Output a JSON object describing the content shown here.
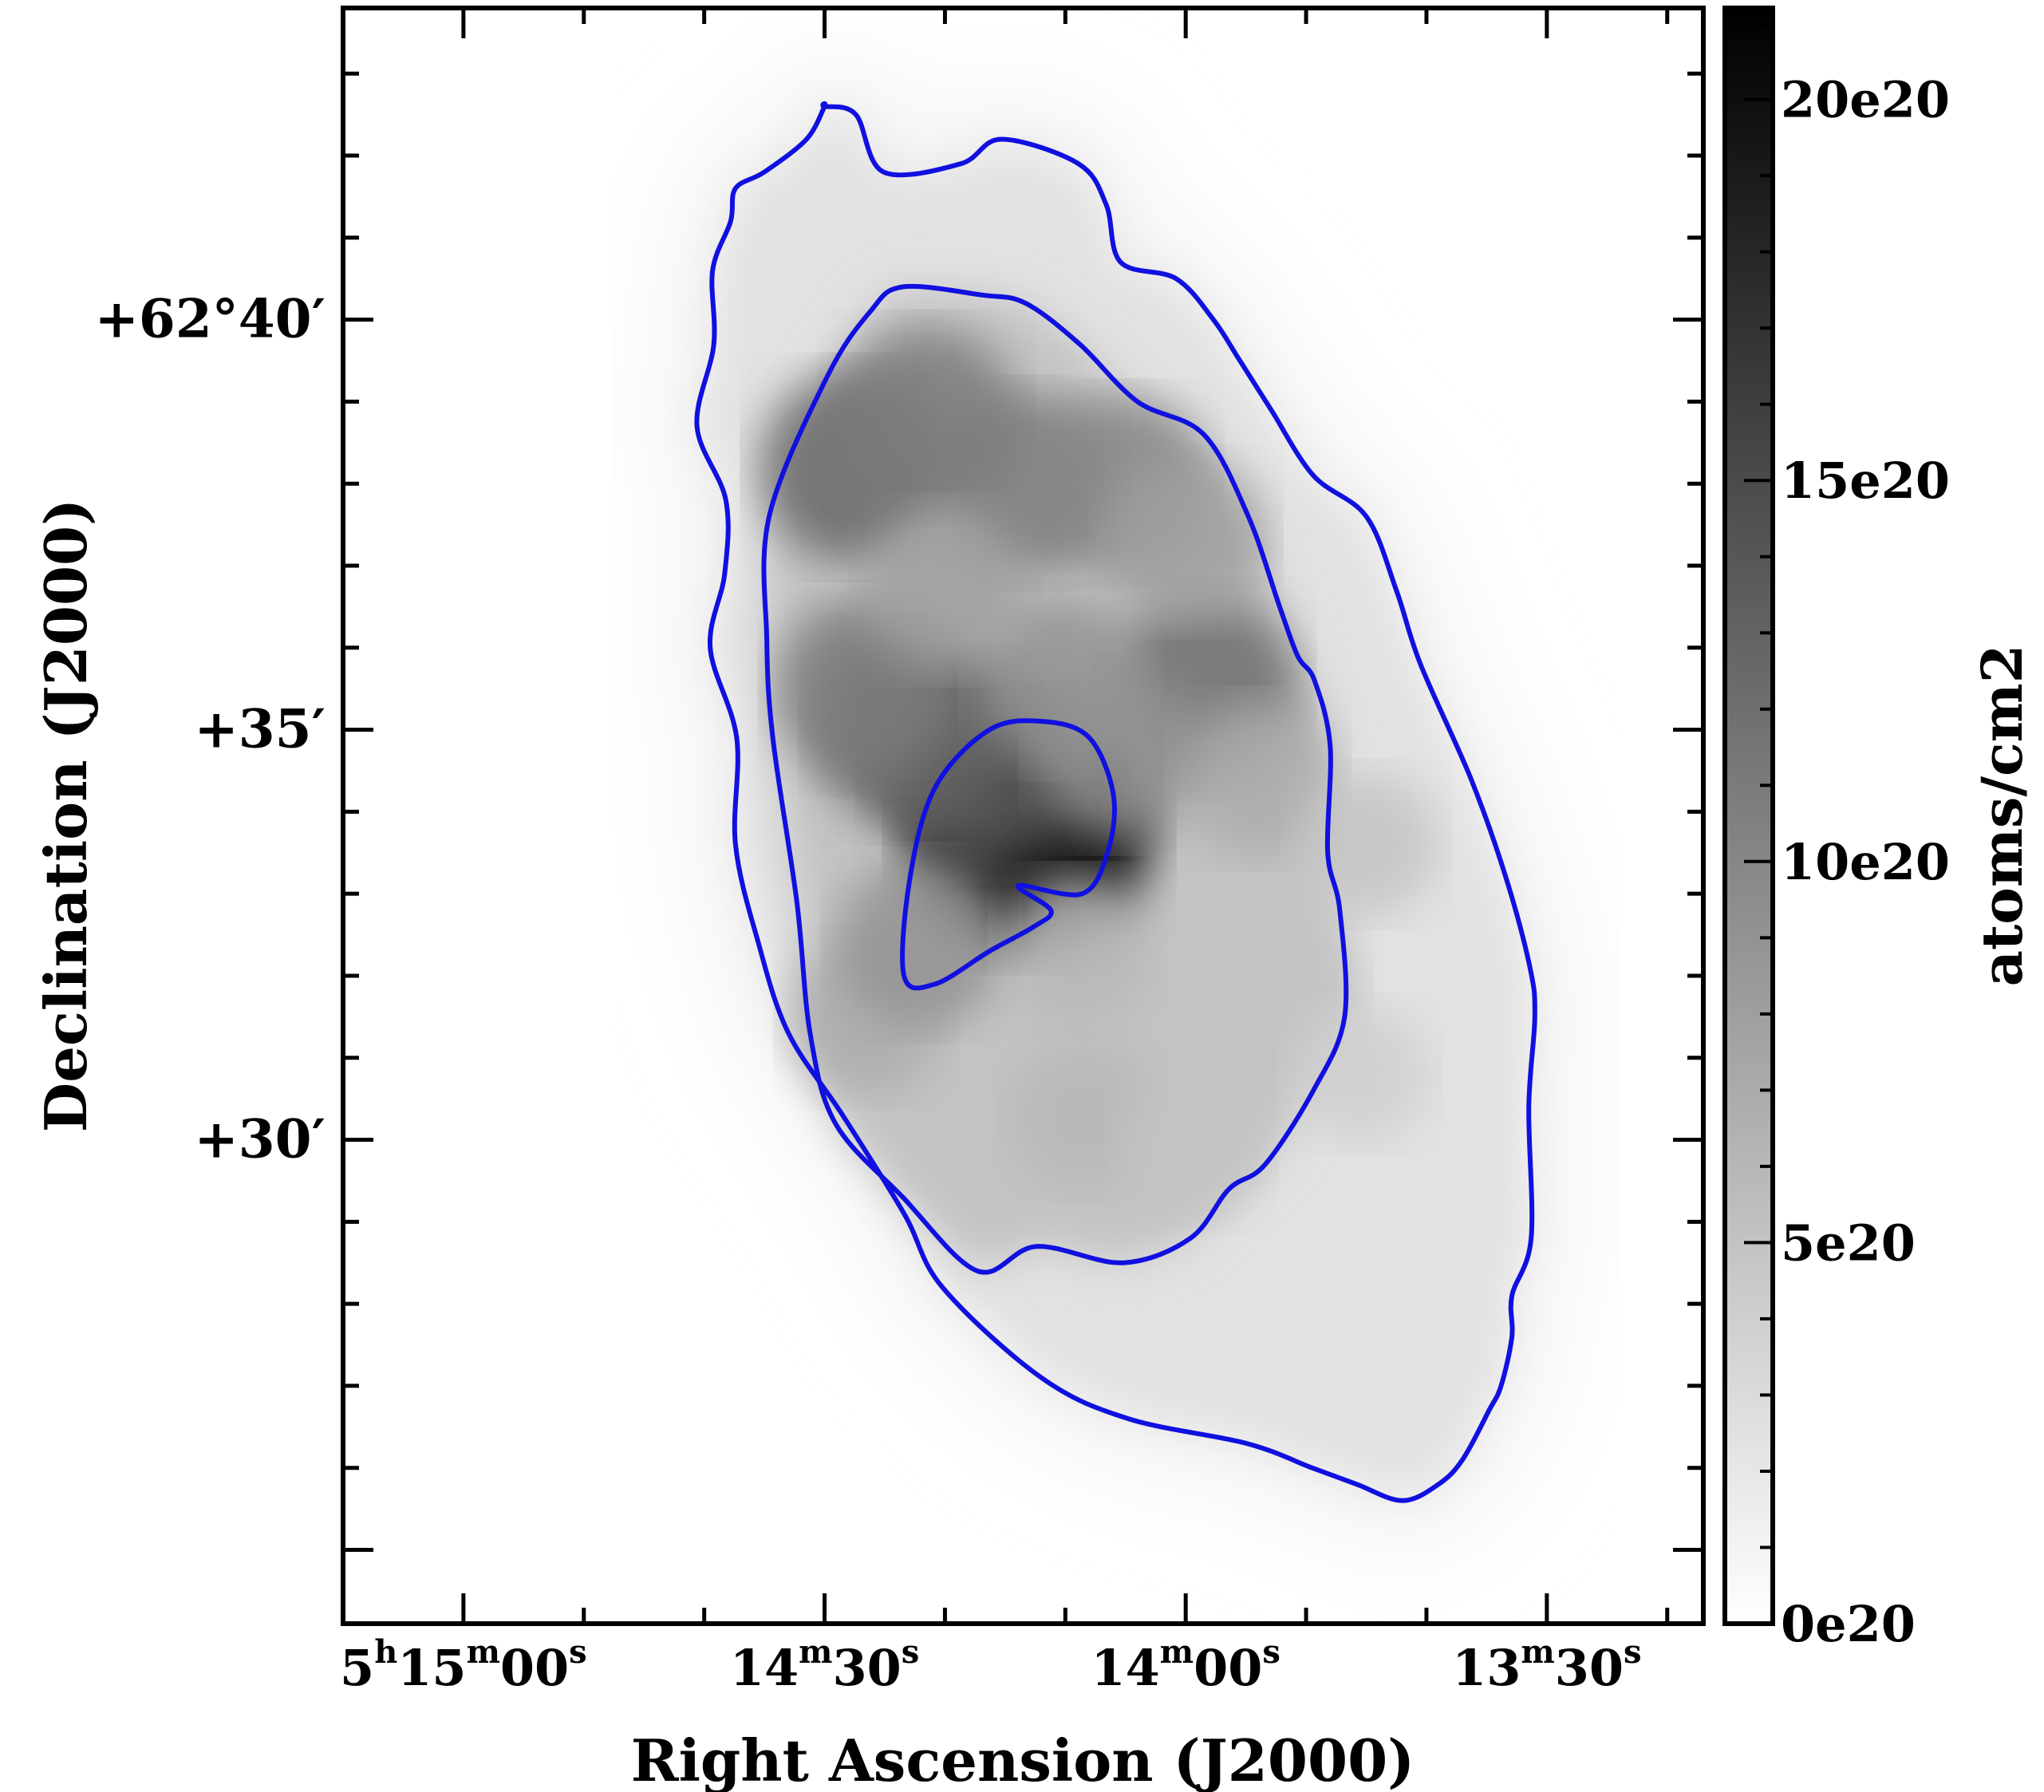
{
  "chart_data": {
    "type": "heatmap",
    "title": "",
    "xlabel": "Right Ascension (J2000)",
    "ylabel": "Declination (J2000)",
    "colorbar_label": "atoms/cm2",
    "x_ticks": [
      {
        "h": "5",
        "m": "15",
        "s": "00",
        "ra_sec": 900
      },
      {
        "h": "",
        "m": "14",
        "s": "30",
        "ra_sec": 870
      },
      {
        "h": "",
        "m": "14",
        "s": "00",
        "ra_sec": 840
      },
      {
        "h": "",
        "m": "13",
        "s": "30",
        "ra_sec": 810
      }
    ],
    "x_range_ra_sec": [
      910.0,
      797.0
    ],
    "y_ticks": [
      {
        "label": "+62°40′",
        "dec_arcmin": 40
      },
      {
        "label": "+35′",
        "dec_arcmin": 35
      },
      {
        "label": "+30′",
        "dec_arcmin": 30
      }
    ],
    "y_range_dec_arcmin": [
      24.1,
      43.8
    ],
    "colorbar": {
      "min": 0,
      "max": 21.2,
      "unit_label": "e20",
      "ticks": [
        {
          "label": "20e20",
          "value": 20
        },
        {
          "label": "15e20",
          "value": 15
        },
        {
          "label": "10e20",
          "value": 10
        },
        {
          "label": "5e20",
          "value": 5
        },
        {
          "label": "0e20",
          "value": 0
        }
      ]
    },
    "column_density_peaks_1e20": [
      {
        "ra_sec": 853.0,
        "dec_arcmin": 33.8,
        "value": 21
      },
      {
        "ra_sec": 857.5,
        "dec_arcmin": 34.6,
        "value": 14
      },
      {
        "ra_sec": 862.5,
        "dec_arcmin": 35.0,
        "value": 13
      },
      {
        "ra_sec": 866.5,
        "dec_arcmin": 35.5,
        "value": 11
      },
      {
        "ra_sec": 867.5,
        "dec_arcmin": 38.2,
        "value": 12.5
      },
      {
        "ra_sec": 861.5,
        "dec_arcmin": 38.8,
        "value": 11
      },
      {
        "ra_sec": 853.5,
        "dec_arcmin": 38.0,
        "value": 11
      },
      {
        "ra_sec": 845.5,
        "dec_arcmin": 38.0,
        "value": 10
      },
      {
        "ra_sec": 838.5,
        "dec_arcmin": 35.5,
        "value": 12
      },
      {
        "ra_sec": 850.5,
        "dec_arcmin": 35.6,
        "value": 9
      },
      {
        "ra_sec": 845.5,
        "dec_arcmin": 34.7,
        "value": 9
      },
      {
        "ra_sec": 834.0,
        "dec_arcmin": 34.4,
        "value": 7
      },
      {
        "ra_sec": 866.5,
        "dec_arcmin": 31.5,
        "value": 7
      },
      {
        "ra_sec": 862.0,
        "dec_arcmin": 32.4,
        "value": 9
      },
      {
        "ra_sec": 849.0,
        "dec_arcmin": 32.3,
        "value": 6
      },
      {
        "ra_sec": 848.5,
        "dec_arcmin": 30.3,
        "value": 6
      },
      {
        "ra_sec": 839.5,
        "dec_arcmin": 29.9,
        "value": 5
      },
      {
        "ra_sec": 831.5,
        "dec_arcmin": 31.8,
        "value": 5
      },
      {
        "ra_sec": 840.0,
        "dec_arcmin": 37.3,
        "value": 8
      },
      {
        "ra_sec": 860.0,
        "dec_arcmin": 36.7,
        "value": 8
      },
      {
        "ra_sec": 825.0,
        "dec_arcmin": 33.6,
        "value": 5
      },
      {
        "ra_sec": 825.5,
        "dec_arcmin": 30.8,
        "value": 4
      }
    ],
    "contour_levels_1e20": [
      1.5,
      6,
      12
    ],
    "contours": [
      {
        "level": 1.5,
        "ra_sec": [
          870.0,
          867.4,
          865.1,
          858.7,
          855.3,
          848.9,
          846.6,
          845.4,
          840.8,
          837.7,
          835.5,
          832.9,
          829.4,
          825.0,
          822.5,
          820.5,
          816.3,
          813.4,
          811.4,
          811.0,
          811.5,
          811.3,
          812.9,
          812.9,
          813.8,
          814.8,
          817.0,
          819.0,
          822.0,
          825.8,
          829.5,
          835.0,
          844.8,
          852.0,
          860.2,
          863.4,
          868.5,
          873.0,
          875.5,
          877.4,
          877.3,
          879.5,
          878.3,
          878.2,
          880.6,
          879.2,
          879.3,
          877.8,
          877.4,
          875.0,
          871.5,
          870.0
        ],
        "dec_arcmin": [
          42.6,
          42.5,
          41.8,
          41.9,
          42.2,
          41.9,
          41.4,
          40.7,
          40.5,
          40.0,
          39.5,
          38.9,
          38.1,
          37.6,
          36.7,
          35.8,
          34.4,
          33.2,
          32.1,
          31.5,
          30.4,
          28.8,
          28.1,
          27.6,
          27.0,
          26.7,
          26.1,
          25.8,
          25.6,
          25.8,
          26.0,
          26.3,
          26.6,
          27.1,
          28.2,
          29.1,
          30.3,
          31.3,
          32.4,
          33.6,
          34.9,
          36.0,
          36.9,
          37.8,
          38.7,
          39.7,
          40.6,
          41.2,
          41.6,
          41.8,
          42.2,
          42.6
        ]
      },
      {
        "level": 6,
        "ra_sec": [
          863.5,
          856.9,
          853.3,
          848.8,
          844.0,
          838.5,
          834.8,
          832.2,
          830.7,
          829.3,
          828.0,
          828.2,
          827.2,
          826.8,
          829.4,
          833.4,
          836.4,
          839.6,
          845.2,
          852.4,
          857.3,
          863.5,
          869.1,
          871.2,
          872.3,
          874.3,
          874.8,
          874.6,
          869.8,
          866.2
        ],
        "dec_arcmin": [
          40.4,
          40.3,
          40.2,
          39.7,
          39.0,
          38.6,
          37.6,
          36.5,
          35.9,
          35.6,
          34.8,
          33.5,
          32.8,
          31.5,
          30.6,
          29.7,
          29.4,
          28.8,
          28.5,
          28.7,
          28.4,
          29.3,
          30.2,
          31.3,
          32.9,
          34.9,
          36.1,
          37.6,
          39.3,
          40.1
        ]
      },
      {
        "level": 12,
        "ra_sec": [
          853.9,
          848.6,
          846.5,
          846.0,
          848.0,
          851.8,
          856.3,
          860.8,
          862.9,
          863.4,
          860.8,
          856.3,
          852.6,
          851.2
        ],
        "dec_arcmin": [
          33.1,
          33.0,
          33.5,
          34.2,
          34.9,
          35.1,
          35.0,
          34.3,
          33.2,
          32.0,
          31.9,
          32.3,
          32.6,
          32.8
        ]
      }
    ]
  }
}
